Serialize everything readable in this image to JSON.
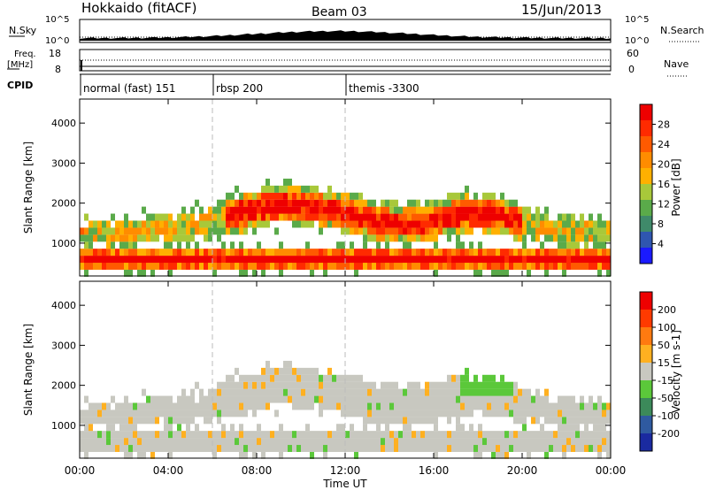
{
  "header": {
    "station": "Hokkaido (fitACF)",
    "beam": "Beam 03",
    "date": "15/Jun/2013"
  },
  "sky_panel": {
    "left_label": "N.Sky",
    "right_label": "N.Search",
    "ticks_left": [
      "10^5",
      "10^0"
    ],
    "ticks_right": [
      "10^5",
      "10^0"
    ]
  },
  "freq_panel": {
    "left_label_line1": "Freq.",
    "left_label_line2": "[MHz]",
    "right_label": "Nave",
    "ticks_left": [
      "18",
      "8"
    ],
    "ticks_right": [
      "60",
      "0"
    ]
  },
  "cpid": {
    "label": "CPID",
    "segments": [
      {
        "name": "normal (fast) 151",
        "start_hour": 0
      },
      {
        "name": "rbsp 200",
        "start_hour": 6
      },
      {
        "name": "themis -3300",
        "start_hour": 12
      }
    ]
  },
  "x_axis": {
    "label": "Time UT",
    "ticks": [
      "00:00",
      "04:00",
      "08:00",
      "12:00",
      "16:00",
      "20:00",
      "00:00"
    ],
    "range_hours": [
      0,
      24
    ]
  },
  "chart_data": [
    {
      "type": "heatmap",
      "panel": "power",
      "ylabel": "Slant Range [km]",
      "yticks": [
        "1000",
        "2000",
        "3000",
        "4000"
      ],
      "ylim": [
        180,
        4600
      ],
      "colorbar": {
        "label": "Power [dB]",
        "ticks": [
          "4",
          "8",
          "12",
          "16",
          "20",
          "24",
          "28"
        ],
        "colors": [
          "#1a1aff",
          "#2f56b0",
          "#3f8a6a",
          "#5aaa4a",
          "#a8c83a",
          "#ffb000",
          "#ff8c00",
          "#ff5a00",
          "#ff2a00",
          "#ee0000"
        ]
      }
    },
    {
      "type": "heatmap",
      "panel": "velocity",
      "ylabel": "Slant Range [km]",
      "yticks": [
        "1000",
        "2000",
        "3000",
        "4000"
      ],
      "ylim": [
        180,
        4600
      ],
      "colorbar": {
        "label": "Velocity [m s-1]",
        "ticks": [
          "200",
          "100",
          "50",
          "15",
          "-15",
          "-50",
          "-100",
          "-200"
        ],
        "colors": [
          "#1a2aa0",
          "#2f5aa0",
          "#3c8a5a",
          "#5bc83a",
          "#c8c8c0",
          "#ffb020",
          "#ff7a10",
          "#ff3a00",
          "#ee0000"
        ]
      }
    }
  ]
}
